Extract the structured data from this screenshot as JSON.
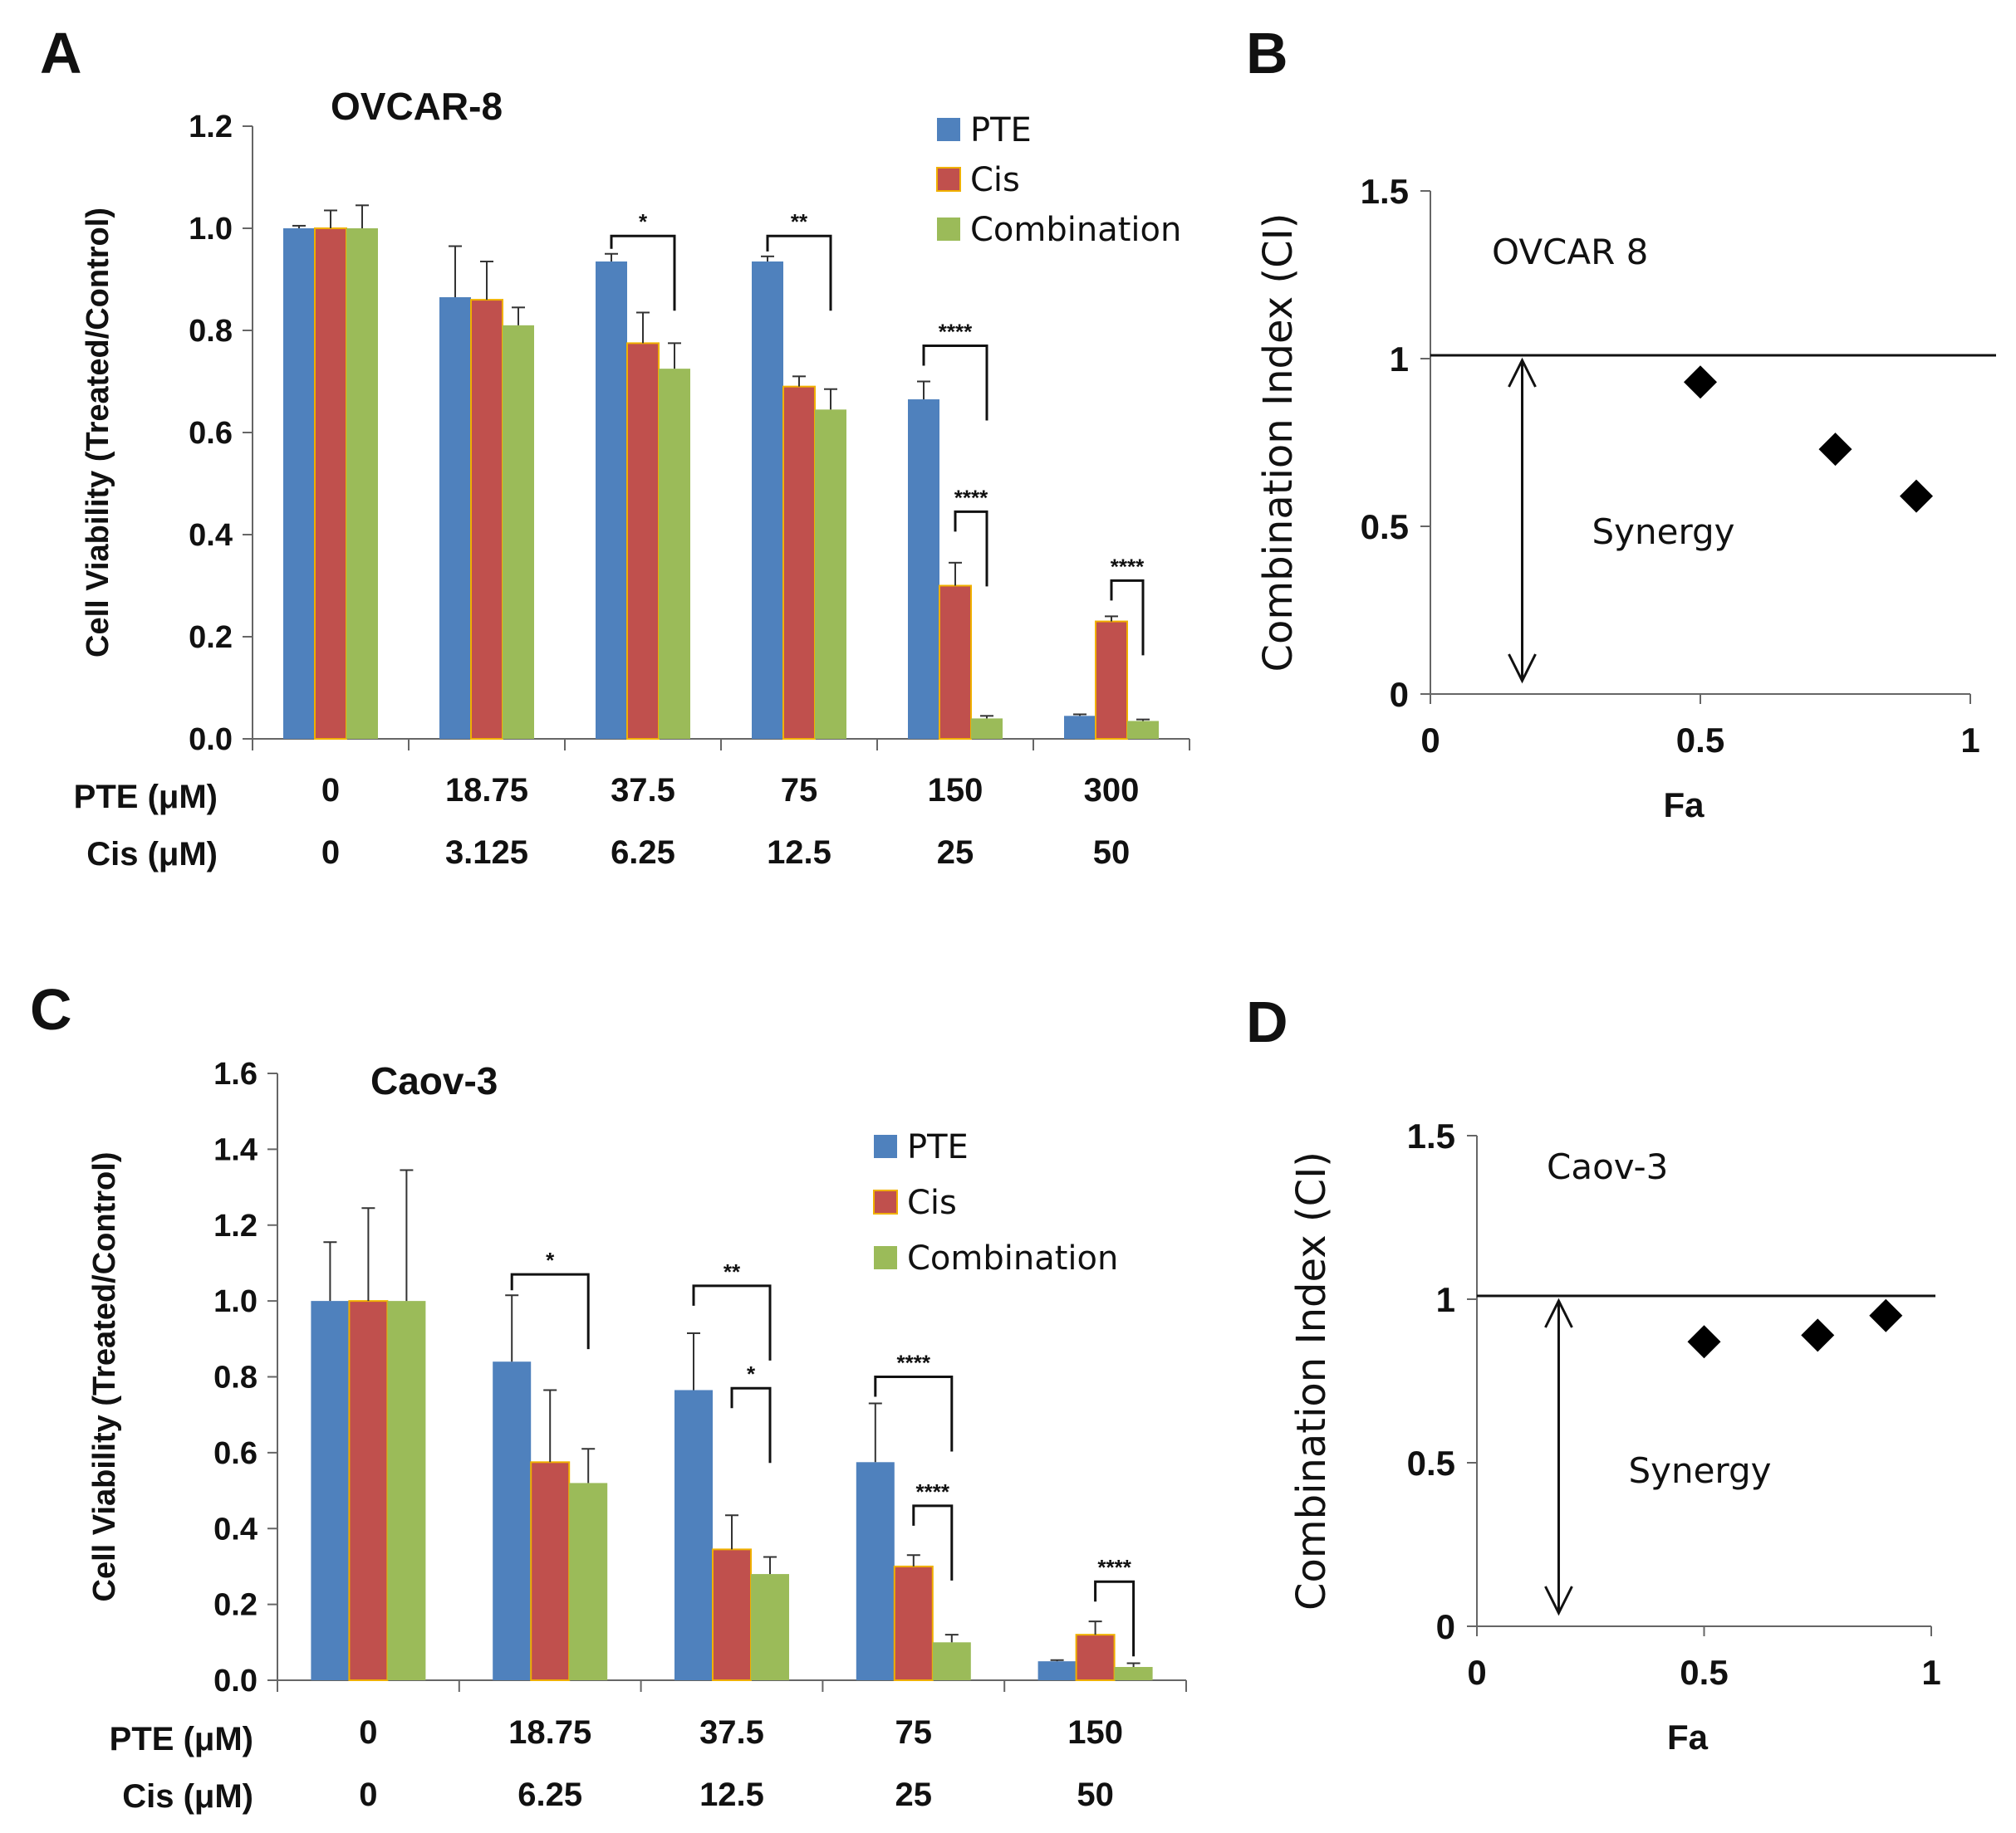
{
  "panel_labels": {
    "a": "A",
    "b": "B",
    "c": "C",
    "d": "D"
  },
  "colors": {
    "pte": "#4F81BD",
    "cis": "#C0504D",
    "cis_edge": "#F0B000",
    "combination": "#9BBB59",
    "axis": "#666666",
    "ink": "#111111"
  },
  "chart_data": [
    {
      "id": "A",
      "type": "bar",
      "title": "OVCAR-8",
      "ylabel": "Cell Viability (Treated/Control)",
      "ylim": [
        0,
        1.2
      ],
      "yticks": [
        "0.0",
        "0.2",
        "0.4",
        "0.6",
        "0.8",
        "1.0",
        "1.2"
      ],
      "ytick_values": [
        0,
        0.2,
        0.4,
        0.6,
        0.8,
        1.0,
        1.2
      ],
      "row_labels": [
        "PTE (μM)",
        "Cis (μM)"
      ],
      "categories_pte": [
        "0",
        "18.75",
        "37.5",
        "75",
        "150",
        "300"
      ],
      "categories_cis": [
        "0",
        "3.125",
        "6.25",
        "12.5",
        "25",
        "50"
      ],
      "legend": [
        "PTE",
        "Cis",
        "Combination"
      ],
      "series": [
        {
          "name": "PTE",
          "values": [
            1.0,
            0.865,
            0.935,
            0.935,
            0.665,
            0.045
          ],
          "errors": [
            0.005,
            0.1,
            0.015,
            0.01,
            0.035,
            0.003
          ]
        },
        {
          "name": "Cis",
          "values": [
            1.0,
            0.86,
            0.775,
            0.69,
            0.3,
            0.23
          ],
          "errors": [
            0.035,
            0.075,
            0.06,
            0.02,
            0.045,
            0.01
          ]
        },
        {
          "name": "Combination",
          "values": [
            1.0,
            0.81,
            0.725,
            0.645,
            0.04,
            0.035
          ],
          "errors": [
            0.045,
            0.035,
            0.05,
            0.04,
            0.005,
            0.003
          ]
        }
      ],
      "significance": [
        {
          "group": 2,
          "from": 0,
          "to": 2,
          "level": 0.985,
          "label": "*"
        },
        {
          "group": 3,
          "from": 0,
          "to": 2,
          "level": 0.985,
          "label": "**"
        },
        {
          "group": 4,
          "from": 0,
          "to": 2,
          "level": 0.77,
          "label": "****"
        },
        {
          "group": 4,
          "from": 1,
          "to": 2,
          "level": 0.445,
          "label": "****"
        },
        {
          "group": 5,
          "from": 1,
          "to": 2,
          "level": 0.31,
          "label": "****"
        }
      ]
    },
    {
      "id": "B",
      "type": "scatter",
      "title": "OVCAR 8",
      "ylabel": "Combination Index (CI)",
      "xlabel": "Fa",
      "xlim": [
        0,
        1
      ],
      "ylim": [
        0,
        1.5
      ],
      "xticks": [
        "0",
        "0.5",
        "1"
      ],
      "xtick_values": [
        0,
        0.5,
        1
      ],
      "yticks": [
        "0",
        "0.5",
        "1",
        "1.5"
      ],
      "ytick_values": [
        0,
        0.5,
        1,
        1.5
      ],
      "reference_line": 1,
      "synergy_label": "Synergy",
      "synergy_arrow_x": 0.17,
      "points": [
        {
          "x": 0.5,
          "y": 0.93
        },
        {
          "x": 0.75,
          "y": 0.73
        },
        {
          "x": 0.9,
          "y": 0.59
        }
      ]
    },
    {
      "id": "C",
      "type": "bar",
      "title": "Caov-3",
      "ylabel": "Cell Viability (Treated/Control)",
      "ylim": [
        0,
        1.6
      ],
      "yticks": [
        "0.0",
        "0.2",
        "0.4",
        "0.6",
        "0.8",
        "1.0",
        "1.2",
        "1.4",
        "1.6"
      ],
      "ytick_values": [
        0,
        0.2,
        0.4,
        0.6,
        0.8,
        1.0,
        1.2,
        1.4,
        1.6
      ],
      "row_labels": [
        "PTE (μM)",
        "Cis (μM)"
      ],
      "categories_pte": [
        "0",
        "18.75",
        "37.5",
        "75",
        "150"
      ],
      "categories_cis": [
        "0",
        "6.25",
        "12.5",
        "25",
        "50"
      ],
      "legend": [
        "PTE",
        "Cis",
        "Combination"
      ],
      "series": [
        {
          "name": "PTE",
          "values": [
            1.0,
            0.84,
            0.765,
            0.575,
            0.05
          ],
          "errors": [
            0.155,
            0.175,
            0.15,
            0.155,
            0.003
          ]
        },
        {
          "name": "Cis",
          "values": [
            1.0,
            0.575,
            0.345,
            0.3,
            0.12
          ],
          "errors": [
            0.245,
            0.19,
            0.09,
            0.03,
            0.035
          ]
        },
        {
          "name": "Combination",
          "values": [
            1.0,
            0.52,
            0.28,
            0.1,
            0.035
          ],
          "errors": [
            0.345,
            0.09,
            0.045,
            0.02,
            0.01
          ]
        }
      ],
      "significance": [
        {
          "group": 1,
          "from": 0,
          "to": 2,
          "level": 1.07,
          "label": "*"
        },
        {
          "group": 2,
          "from": 0,
          "to": 2,
          "level": 1.04,
          "label": "**"
        },
        {
          "group": 2,
          "from": 1,
          "to": 2,
          "level": 0.77,
          "label": "*"
        },
        {
          "group": 3,
          "from": 0,
          "to": 2,
          "level": 0.8,
          "label": "****"
        },
        {
          "group": 3,
          "from": 1,
          "to": 2,
          "level": 0.46,
          "label": "****"
        },
        {
          "group": 4,
          "from": 1,
          "to": 2,
          "level": 0.26,
          "label": "****"
        }
      ]
    },
    {
      "id": "D",
      "type": "scatter",
      "title": "Caov-3",
      "ylabel": "Combination Index (CI)",
      "xlabel": "Fa",
      "xlim": [
        0,
        1
      ],
      "ylim": [
        0,
        1.5
      ],
      "xticks": [
        "0",
        "0.5",
        "1"
      ],
      "xtick_values": [
        0,
        0.5,
        1
      ],
      "yticks": [
        "0",
        "0.5",
        "1",
        "1.5"
      ],
      "ytick_values": [
        0,
        0.5,
        1,
        1.5
      ],
      "reference_line": 1,
      "synergy_label": "Synergy",
      "synergy_arrow_x": 0.18,
      "points": [
        {
          "x": 0.5,
          "y": 0.87
        },
        {
          "x": 0.75,
          "y": 0.89
        },
        {
          "x": 0.9,
          "y": 0.95
        }
      ]
    }
  ]
}
